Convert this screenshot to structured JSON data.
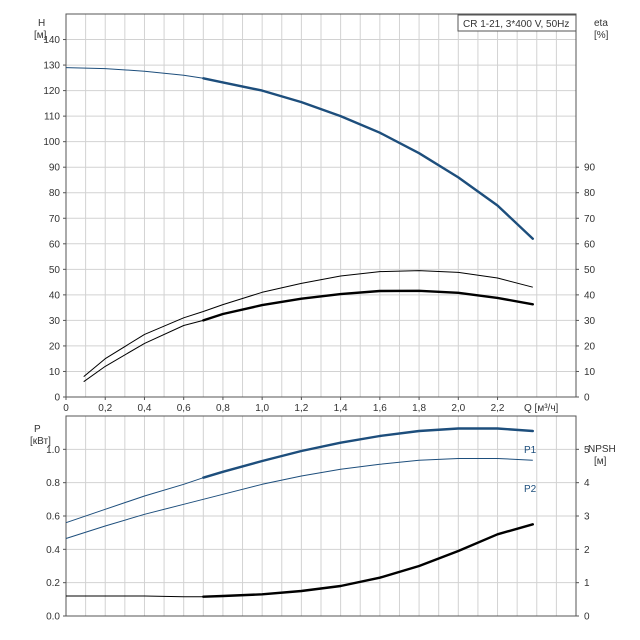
{
  "title_box": "CR 1-21, 3*400 V, 50Hz",
  "colors": {
    "grid": "#d2d2d2",
    "frame": "#555555",
    "blue": "#1d4e7c",
    "black": "#000000",
    "text": "#333333"
  },
  "chart_data": [
    {
      "type": "line",
      "panel": "top",
      "title": "CR 1-21, 3*400 V, 50Hz",
      "xlabel": "Q [м³/ч]",
      "x_ticks": [
        "0",
        "0,2",
        "0,4",
        "0,6",
        "0,8",
        "1,0",
        "1,2",
        "1,4",
        "1,6",
        "1,8",
        "2,0",
        "2,2"
      ],
      "xlim": [
        0,
        2.6
      ],
      "left_axis": {
        "label": "H",
        "unit": "[м]",
        "ylim": [
          0,
          150
        ],
        "ticks": [
          "0",
          "10",
          "20",
          "30",
          "40",
          "50",
          "60",
          "70",
          "80",
          "90",
          "100",
          "110",
          "120",
          "130",
          "140"
        ]
      },
      "right_axis": {
        "label": "eta",
        "unit": "[%]",
        "ylim": [
          0,
          150
        ],
        "ticks": [
          "0",
          "10",
          "20",
          "30",
          "40",
          "50",
          "60",
          "70",
          "80",
          "90"
        ]
      },
      "grid": true,
      "series": [
        {
          "axis": "left",
          "color": "#1d4e7c",
          "x": [
            0,
            0.2,
            0.4,
            0.6,
            0.7,
            0.8,
            1.0,
            1.2,
            1.4,
            1.6,
            1.8,
            2.0,
            2.2,
            2.38
          ],
          "y": [
            129,
            128.6,
            127.6,
            126,
            124.8,
            123.2,
            120,
            115.5,
            110,
            103.5,
            95.5,
            86,
            75,
            62
          ],
          "bold_from": 0.7
        },
        {
          "axis": "right",
          "color": "#000000",
          "x": [
            0.09,
            0.2,
            0.4,
            0.6,
            0.7,
            0.8,
            1.0,
            1.2,
            1.4,
            1.6,
            1.8,
            2.0,
            2.2,
            2.38
          ],
          "y": [
            6,
            12,
            21,
            28,
            30,
            32.5,
            36,
            38.5,
            40.3,
            41.5,
            41.6,
            40.8,
            38.8,
            36.3
          ],
          "bold_from": 0.7
        },
        {
          "axis": "right",
          "color": "#000000",
          "x": [
            0.09,
            0.2,
            0.4,
            0.6,
            0.7,
            0.8,
            1.0,
            1.2,
            1.4,
            1.6,
            1.8,
            2.0,
            2.2,
            2.38
          ],
          "y": [
            8,
            15,
            24.5,
            31,
            33.5,
            36.2,
            41,
            44.5,
            47.4,
            49.1,
            49.5,
            48.8,
            46.6,
            43
          ],
          "bold_from": 99
        }
      ]
    },
    {
      "type": "line",
      "panel": "bottom",
      "x_ticks": [],
      "xlim": [
        0,
        2.6
      ],
      "left_axis": {
        "label": "P",
        "unit": "[кВт]",
        "ylim": [
          0,
          1.2
        ],
        "ticks": [
          "0.0",
          "0.2",
          "0.4",
          "0.6",
          "0.8",
          "1.0"
        ]
      },
      "right_axis": {
        "label": "NPSH",
        "unit": "[м]",
        "ylim": [
          0,
          6
        ],
        "ticks": [
          "0",
          "1",
          "2",
          "3",
          "4",
          "5"
        ]
      },
      "grid": true,
      "series": [
        {
          "name": "P1",
          "axis": "left",
          "color": "#1d4e7c",
          "x": [
            0,
            0.2,
            0.4,
            0.6,
            0.7,
            0.8,
            1.0,
            1.2,
            1.4,
            1.6,
            1.8,
            2.0,
            2.2,
            2.38
          ],
          "y": [
            0.56,
            0.64,
            0.72,
            0.79,
            0.83,
            0.865,
            0.93,
            0.99,
            1.04,
            1.08,
            1.11,
            1.125,
            1.125,
            1.11
          ],
          "bold_from": 0.7
        },
        {
          "name": "P2",
          "axis": "left",
          "color": "#1d4e7c",
          "x": [
            0,
            0.2,
            0.4,
            0.6,
            0.7,
            0.8,
            1.0,
            1.2,
            1.4,
            1.6,
            1.8,
            2.0,
            2.2,
            2.38
          ],
          "y": [
            0.465,
            0.54,
            0.61,
            0.67,
            0.7,
            0.73,
            0.79,
            0.84,
            0.88,
            0.91,
            0.935,
            0.945,
            0.945,
            0.935
          ],
          "bold_from": 99
        },
        {
          "axis": "right",
          "color": "#000000",
          "x": [
            0,
            0.2,
            0.4,
            0.6,
            0.7,
            0.8,
            1.0,
            1.2,
            1.4,
            1.6,
            1.8,
            2.0,
            2.2,
            2.38
          ],
          "y": [
            0.6,
            0.6,
            0.6,
            0.58,
            0.58,
            0.6,
            0.65,
            0.75,
            0.9,
            1.15,
            1.5,
            1.95,
            2.45,
            2.75
          ],
          "bold_from": 0.7
        }
      ]
    }
  ]
}
